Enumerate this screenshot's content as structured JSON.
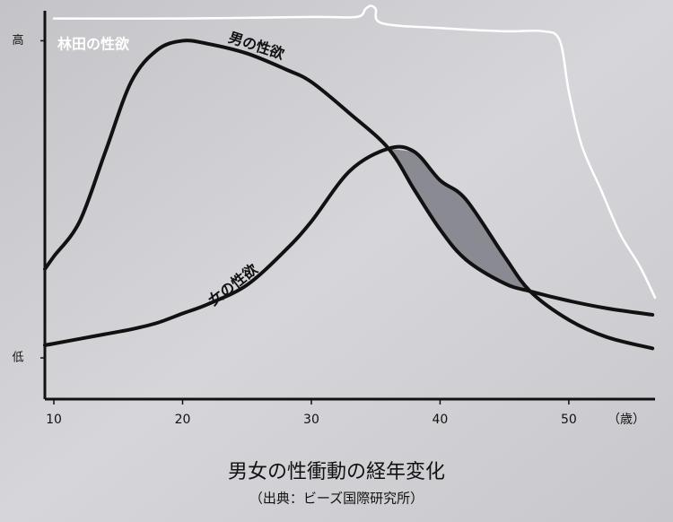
{
  "chart_data": {
    "type": "line",
    "title": "男女の性衝動の経年変化",
    "subtitle": "（出典：ビーズ国際研究所）",
    "x_unit_label": "（歳）",
    "xlim": [
      9.3,
      56.7
    ],
    "xticks": [
      10,
      20,
      30,
      40,
      50
    ],
    "ylim": [
      -13,
      112
    ],
    "yticks": [
      {
        "value": 100,
        "label": "高"
      },
      {
        "value": 0,
        "label": "低"
      }
    ],
    "shade_color": "#8a8a92",
    "series": [
      {
        "name": "男の性欲",
        "color": "#111111",
        "x": [
          9.3,
          10,
          12,
          14,
          16,
          18,
          20,
          22,
          25,
          28,
          30,
          33,
          36,
          38,
          40,
          42,
          45,
          47,
          50,
          53,
          56.5
        ],
        "values": [
          28,
          32,
          43,
          65,
          87,
          97,
          100,
          99,
          96,
          91,
          87,
          77,
          66,
          53,
          40.5,
          31,
          23.5,
          21,
          18,
          15.6,
          13.6
        ]
      },
      {
        "name": "女の性欲",
        "color": "#111111",
        "x": [
          9.3,
          10,
          12,
          14,
          16,
          18,
          20,
          22,
          25,
          28,
          30,
          33,
          36,
          38,
          40,
          42,
          45,
          47,
          50,
          53,
          56.5
        ],
        "values": [
          4,
          4.5,
          6,
          7.5,
          9,
          11,
          14,
          17,
          23,
          34,
          43,
          59,
          66,
          65,
          56,
          50,
          32,
          21,
          12,
          6.5,
          3
        ]
      },
      {
        "name": "林田の性欲",
        "color": "#ffffff",
        "x": [
          10,
          20,
          30,
          33.5,
          34.2,
          34.6,
          35,
          35.5,
          40,
          45,
          48,
          49.3,
          50,
          51,
          52.5,
          54,
          55.5,
          56.7
        ],
        "values": [
          107,
          107,
          107.5,
          107.5,
          110,
          111,
          110,
          105.5,
          104,
          103,
          103,
          100,
          84,
          67,
          53,
          39,
          29,
          19
        ]
      }
    ]
  }
}
